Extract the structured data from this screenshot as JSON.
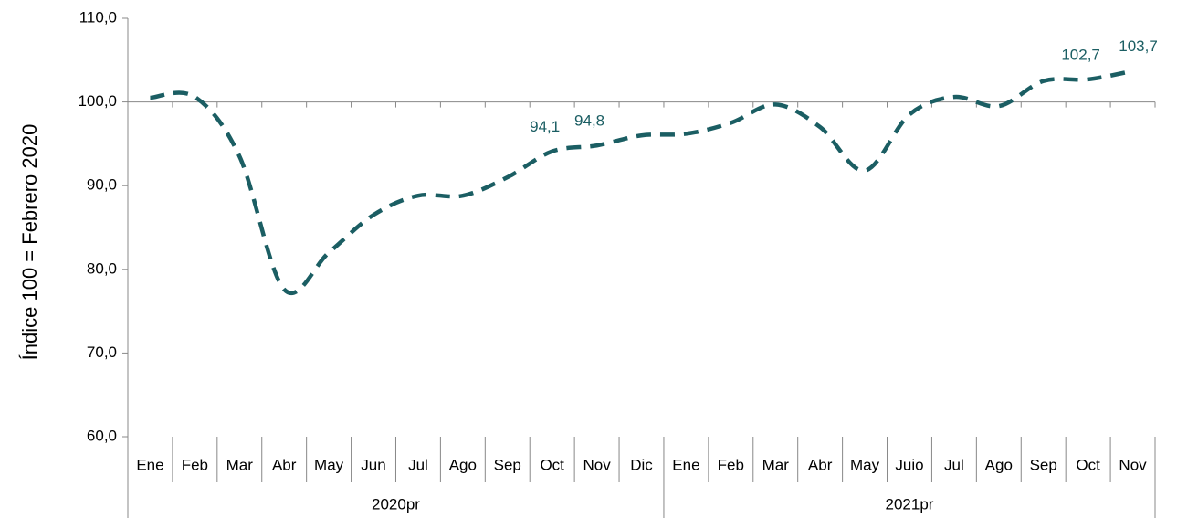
{
  "chart_data": {
    "type": "line",
    "y_axis_label": "Índice 100 = Febrero 2020",
    "groups": [
      {
        "name": "2020pr",
        "categories": [
          "Ene",
          "Feb",
          "Mar",
          "Abr",
          "May",
          "Jun",
          "Jul",
          "Ago",
          "Sep",
          "Oct",
          "Nov",
          "Dic"
        ]
      },
      {
        "name": "2021pr",
        "categories": [
          "Ene",
          "Feb",
          "Mar",
          "Abr",
          "May",
          "Juio",
          "Jul",
          "Ago",
          "Sep",
          "Oct",
          "Nov"
        ]
      }
    ],
    "series": [
      {
        "color": "#1b5e63",
        "values": [
          100.5,
          100.6,
          93.5,
          77.6,
          82,
          86.5,
          88.8,
          88.8,
          91,
          94.1,
          94.8,
          96,
          96.2,
          97.5,
          99.7,
          97,
          91.8,
          98.5,
          100.6,
          99.5,
          102.5,
          102.7,
          103.7
        ],
        "value_labels": [
          null,
          null,
          null,
          null,
          null,
          null,
          null,
          null,
          null,
          "94,1",
          "94,8",
          null,
          null,
          null,
          null,
          null,
          null,
          null,
          null,
          null,
          null,
          "102,7",
          "103,7"
        ]
      }
    ],
    "ylim": [
      60,
      110
    ],
    "yticks": [
      {
        "value": 60,
        "label": "60,0"
      },
      {
        "value": 70,
        "label": "70,0"
      },
      {
        "value": 80,
        "label": "80,0"
      },
      {
        "value": 90,
        "label": "90,0"
      },
      {
        "value": 100,
        "label": "100,0"
      },
      {
        "value": 110,
        "label": "110,0"
      }
    ],
    "x_axis_crosses": 100,
    "dashed": true
  }
}
